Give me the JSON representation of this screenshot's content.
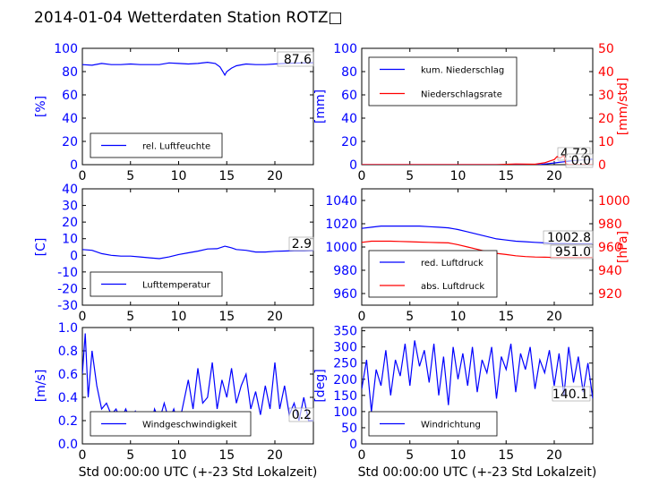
{
  "page_title": "2014-01-04 Wetterdaten Station ROTZ□",
  "colors": {
    "left_axis": "#0000ff",
    "right_axis": "#ff0000",
    "line_primary": "#0000ff",
    "line_secondary": "#ff0000"
  },
  "chart_data": [
    {
      "id": "humidity",
      "type": "line",
      "ylabel": "[%]",
      "xlabel": "",
      "xlim": [
        0,
        24
      ],
      "ylim": [
        0,
        100
      ],
      "xticks": [
        "0",
        "5",
        "10",
        "15",
        "20"
      ],
      "yticks": [
        "0",
        "20",
        "40",
        "60",
        "80",
        "100"
      ],
      "legend_placement": "lower-left",
      "last_value_label": "87.6",
      "series": [
        {
          "name": "rel. Luftfeuchte",
          "axis": "left",
          "color": "#0000ff",
          "x": [
            0,
            1,
            2,
            3,
            4,
            5,
            6,
            7,
            8,
            9,
            10,
            11,
            12,
            13,
            13.8,
            14.3,
            14.6,
            14.8,
            15,
            15.5,
            16,
            17,
            18,
            19,
            20,
            21,
            22,
            23,
            24
          ],
          "y": [
            86,
            85.5,
            87,
            86,
            86,
            86.5,
            86,
            86,
            86,
            87.5,
            87,
            86.5,
            87,
            88,
            87,
            84,
            80,
            77,
            80,
            83,
            85,
            86.5,
            86,
            86,
            86.5,
            87,
            87.3,
            87.5,
            87.6
          ]
        }
      ]
    },
    {
      "id": "precipitation",
      "type": "line",
      "ylabel": "[mm]",
      "ylabel_right": "[mm/std]",
      "xlabel": "",
      "xlim": [
        0,
        24
      ],
      "ylim": [
        0,
        100
      ],
      "ylim_right": [
        0,
        50
      ],
      "xticks": [
        "0",
        "5",
        "10",
        "15",
        "20"
      ],
      "yticks": [
        "0",
        "20",
        "40",
        "60",
        "80",
        "100"
      ],
      "yticks_right": [
        "0",
        "10",
        "20",
        "30",
        "40",
        "50"
      ],
      "legend_placement": "top-left",
      "last_value_labels": [
        "4.72",
        "0.0"
      ],
      "series": [
        {
          "name": "kum. Niederschlag",
          "axis": "left",
          "color": "#0000ff",
          "x": [
            0,
            18.5,
            19,
            19.5,
            20,
            20.5,
            21,
            21.5,
            22,
            23,
            24
          ],
          "y": [
            0,
            0,
            0.5,
            1,
            1.5,
            2,
            2.5,
            3,
            3.5,
            4.2,
            4.72
          ]
        },
        {
          "name": "Niederschlagsrate",
          "axis": "right",
          "color": "#ff0000",
          "x": [
            0,
            14,
            16,
            18,
            19,
            19.5,
            20,
            20.3,
            20.6,
            21,
            21.2,
            21.5,
            22,
            24
          ],
          "y": [
            0,
            0,
            0.3,
            0.2,
            0.8,
            1.5,
            2.2,
            3.5,
            2.8,
            4,
            0.5,
            0,
            0,
            0
          ]
        }
      ]
    },
    {
      "id": "temperature",
      "type": "line",
      "ylabel": "[C]",
      "xlabel": "",
      "xlim": [
        0,
        24
      ],
      "ylim": [
        -30,
        40
      ],
      "xticks": [
        "0",
        "5",
        "10",
        "15",
        "20"
      ],
      "yticks": [
        "-30",
        "-20",
        "-10",
        "0",
        "10",
        "20",
        "30",
        "40"
      ],
      "legend_placement": "lower-left",
      "last_value_label": "2.9",
      "series": [
        {
          "name": "Lufttemperatur",
          "axis": "left",
          "color": "#0000ff",
          "x": [
            0,
            1,
            2,
            3,
            4,
            5,
            6,
            7,
            8,
            9,
            10,
            11,
            12,
            13,
            14,
            14.8,
            15.5,
            16,
            17,
            18,
            19,
            20,
            21,
            22,
            23,
            24
          ],
          "y": [
            3.5,
            3,
            1,
            0,
            -0.5,
            -0.5,
            -1,
            -1.5,
            -2,
            -1,
            0.5,
            1.5,
            2.5,
            3.8,
            4,
            5.5,
            4.5,
            3.5,
            3,
            2,
            2,
            2.4,
            2.6,
            2.8,
            2.8,
            2.9
          ]
        }
      ]
    },
    {
      "id": "pressure",
      "type": "line",
      "ylabel": "",
      "ylabel_right": "[hPa]",
      "xlabel": "",
      "xlim": [
        0,
        24
      ],
      "ylim": [
        950,
        1050
      ],
      "ylim_right": [
        910,
        1010
      ],
      "xticks": [
        "0",
        "5",
        "10",
        "15",
        "20"
      ],
      "yticks": [
        "960",
        "980",
        "1000",
        "1020",
        "1040"
      ],
      "yticks_right": [
        "920",
        "940",
        "960",
        "980",
        "1000"
      ],
      "legend_placement": "lower-left",
      "last_value_labels": [
        "1002.8",
        "951.0"
      ],
      "series": [
        {
          "name": "red. Luftdruck",
          "axis": "left",
          "color": "#0000ff",
          "x": [
            0,
            1,
            2,
            3,
            4,
            5,
            6,
            7,
            8,
            9,
            10,
            11,
            12,
            13,
            14,
            15,
            16,
            17,
            18,
            19,
            20,
            21,
            22,
            23,
            24
          ],
          "y": [
            1016,
            1017,
            1018,
            1018,
            1018,
            1018,
            1018,
            1017.5,
            1017,
            1016.5,
            1015,
            1013,
            1011,
            1009,
            1007,
            1006,
            1005,
            1004.5,
            1004,
            1003.5,
            1003,
            1003,
            1002.8,
            1002.8,
            1002.8
          ]
        },
        {
          "name": "abs. Luftdruck",
          "axis": "right",
          "color": "#ff0000",
          "x": [
            0,
            1,
            2,
            3,
            4,
            5,
            6,
            7,
            8,
            9,
            10,
            11,
            12,
            13,
            14,
            15,
            16,
            17,
            18,
            19,
            20,
            21,
            22,
            23,
            24
          ],
          "y": [
            964,
            965,
            965,
            965,
            964.8,
            964.5,
            964.2,
            964,
            963.8,
            963.5,
            962,
            960,
            958,
            956,
            954.5,
            953.5,
            952.5,
            951.8,
            951.4,
            951.2,
            951,
            951,
            951,
            951,
            951
          ]
        }
      ]
    },
    {
      "id": "wind_speed",
      "type": "line",
      "ylabel": "[m/s]",
      "xlabel": "Std 00:00:00 UTC (+-23 Std Lokalzeit)",
      "xlim": [
        0,
        24
      ],
      "ylim": [
        0,
        1.0
      ],
      "xticks": [
        "0",
        "5",
        "10",
        "15",
        "20"
      ],
      "yticks": [
        "0.0",
        "0.2",
        "0.4",
        "0.6",
        "0.8",
        "1.0"
      ],
      "legend_placement": "lower-center",
      "last_value_label": "0.2",
      "series": [
        {
          "name": "Windgeschwindigkeit",
          "axis": "left",
          "color": "#0000ff",
          "x": [
            0,
            0.3,
            0.6,
            1,
            1.5,
            2,
            2.5,
            3,
            3.5,
            4,
            4.5,
            5,
            5.5,
            6,
            6.5,
            7,
            7.5,
            8,
            8.5,
            9,
            9.5,
            10,
            10.5,
            11,
            11.5,
            12,
            12.5,
            13,
            13.5,
            14,
            14.5,
            15,
            15.5,
            16,
            16.5,
            17,
            17.5,
            18,
            18.5,
            19,
            19.5,
            20,
            20.5,
            21,
            21.5,
            22,
            22.5,
            23,
            23.5,
            24
          ],
          "y": [
            0.6,
            0.95,
            0.4,
            0.8,
            0.5,
            0.3,
            0.35,
            0.25,
            0.3,
            0.2,
            0.3,
            0.2,
            0.28,
            0.15,
            0.25,
            0.1,
            0.3,
            0.2,
            0.35,
            0.2,
            0.3,
            0.15,
            0.35,
            0.55,
            0.3,
            0.65,
            0.35,
            0.4,
            0.7,
            0.3,
            0.55,
            0.4,
            0.65,
            0.35,
            0.5,
            0.6,
            0.3,
            0.45,
            0.25,
            0.5,
            0.3,
            0.7,
            0.3,
            0.5,
            0.25,
            0.35,
            0.2,
            0.4,
            0.2,
            0.2
          ]
        }
      ]
    },
    {
      "id": "wind_direction",
      "type": "line",
      "ylabel": "[deg]",
      "xlabel": "Std 00:00:00 UTC (+-23 Std Lokalzeit)",
      "xlim": [
        0,
        24
      ],
      "ylim": [
        0,
        360
      ],
      "xticks": [
        "0",
        "5",
        "10",
        "15",
        "20"
      ],
      "yticks": [
        "0",
        "50",
        "100",
        "150",
        "200",
        "250",
        "300",
        "350"
      ],
      "legend_placement": "lower-left",
      "last_value_label": "140.1",
      "series": [
        {
          "name": "Windrichtung",
          "axis": "left",
          "color": "#0000ff",
          "x": [
            0,
            0.5,
            1,
            1.5,
            2,
            2.5,
            3,
            3.5,
            4,
            4.5,
            5,
            5.5,
            6,
            6.5,
            7,
            7.5,
            8,
            8.5,
            9,
            9.5,
            10,
            10.5,
            11,
            11.5,
            12,
            12.5,
            13,
            13.5,
            14,
            14.5,
            15,
            15.5,
            16,
            16.5,
            17,
            17.5,
            18,
            18.5,
            19,
            19.5,
            20,
            20.5,
            21,
            21.5,
            22,
            22.5,
            23,
            23.5,
            24
          ],
          "y": [
            170,
            260,
            100,
            230,
            180,
            290,
            150,
            260,
            210,
            310,
            180,
            320,
            240,
            290,
            190,
            310,
            150,
            270,
            120,
            300,
            200,
            280,
            180,
            300,
            160,
            260,
            220,
            300,
            140,
            270,
            230,
            310,
            160,
            280,
            230,
            300,
            170,
            260,
            220,
            290,
            180,
            280,
            150,
            300,
            190,
            270,
            160,
            250,
            140.1
          ]
        }
      ]
    }
  ]
}
